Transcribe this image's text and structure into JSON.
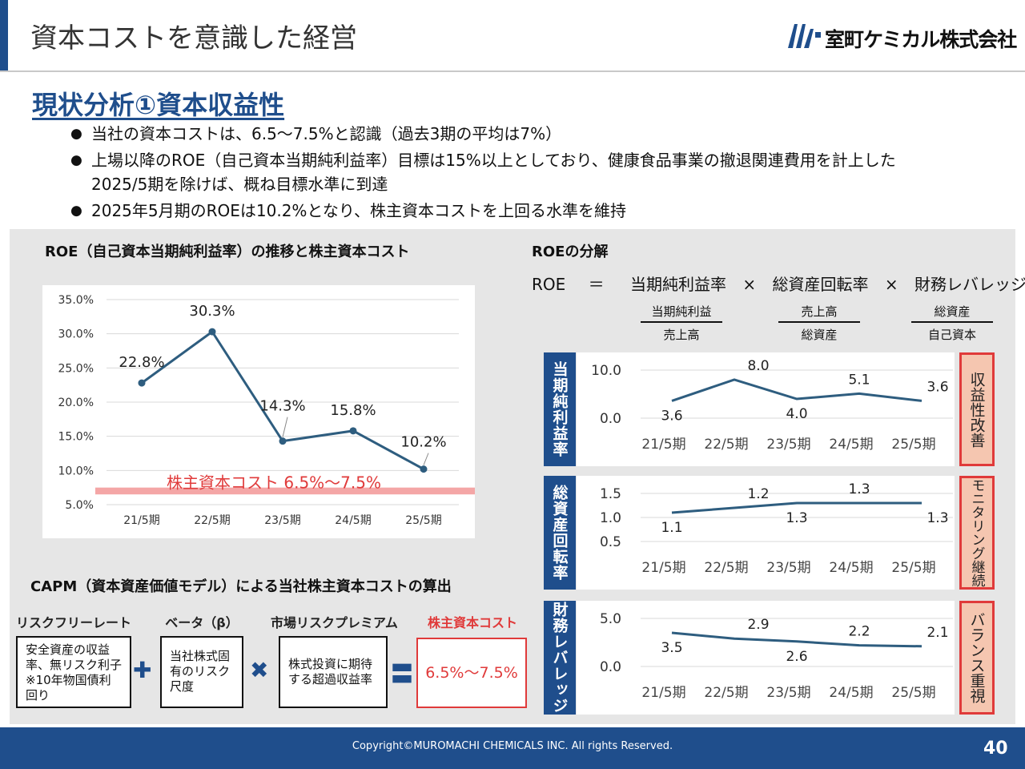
{
  "header": {
    "title": "資本コストを意識した経営",
    "company": "室町ケミカル株式会社"
  },
  "section": {
    "title": "現状分析①資本収益性",
    "bullets": [
      "当社の資本コストは、6.5～7.5%と認識（過去3期の平均は7%）",
      "上場以降のROE（自己資本当期純利益率）目標は15%以上としており、健康食品事業の撤退関連費用を計上した2025/5期を除けば、概ね目標水準に到達",
      "2025年5月期のROEは10.2%となり、株主資本コストを上回る水準を維持"
    ]
  },
  "roe_panel": {
    "heading": "ROE（自己資本当期純利益率）の推移と株主資本コスト",
    "cost_band_label": "株主資本コスト 6.5%～7.5%"
  },
  "chart_data": [
    {
      "type": "line",
      "categories": [
        "21/5期",
        "22/5期",
        "23/5期",
        "24/5期",
        "25/5期"
      ],
      "values": [
        22.8,
        30.3,
        14.3,
        15.8,
        10.2
      ],
      "data_labels": [
        "22.8%",
        "30.3%",
        "14.3%",
        "15.8%",
        "10.2%"
      ],
      "yticks": [
        "5.0%",
        "10.0%",
        "15.0%",
        "20.0%",
        "25.0%",
        "30.0%",
        "35.0%"
      ],
      "ylim": [
        5,
        35
      ],
      "band": [
        6.5,
        7.5
      ],
      "color": "#2e5d7f",
      "band_color": "#f4a6a6"
    },
    {
      "type": "line",
      "categories": [
        "21/5期",
        "22/5期",
        "23/5期",
        "24/5期",
        "25/5期"
      ],
      "values": [
        3.6,
        8.0,
        4.0,
        5.1,
        3.6
      ],
      "data_labels": [
        "3.6",
        "8.0",
        "4.0",
        "5.1",
        "3.6"
      ],
      "yticks": [
        "0.0",
        "10.0"
      ],
      "ylim": [
        0,
        10
      ]
    },
    {
      "type": "line",
      "categories": [
        "21/5期",
        "22/5期",
        "23/5期",
        "24/5期",
        "25/5期"
      ],
      "values": [
        1.1,
        1.2,
        1.3,
        1.3,
        1.3
      ],
      "data_labels": [
        "1.1",
        "1.2",
        "1.3",
        "1.3",
        "1.3"
      ],
      "yticks": [
        "0.5",
        "1.0",
        "1.5"
      ],
      "ylim": [
        0.5,
        1.5
      ]
    },
    {
      "type": "line",
      "categories": [
        "21/5期",
        "22/5期",
        "23/5期",
        "24/5期",
        "25/5期"
      ],
      "values": [
        3.5,
        2.9,
        2.6,
        2.2,
        2.1
      ],
      "data_labels": [
        "3.5",
        "2.9",
        "2.6",
        "2.2",
        "2.1"
      ],
      "yticks": [
        "0.0",
        "5.0"
      ],
      "ylim": [
        0,
        5
      ]
    }
  ],
  "decomp": {
    "heading": "ROEの分解",
    "formula": [
      "ROE",
      "＝",
      "当期純利益率",
      "×",
      "総資産回転率",
      "×",
      "財務レバレッジ"
    ],
    "fractions": [
      {
        "num": "当期純利益",
        "den": "売上高"
      },
      {
        "num": "売上高",
        "den": "総資産"
      },
      {
        "num": "総資産",
        "den": "自己資本"
      }
    ],
    "rows": [
      {
        "label": "当期純利益率",
        "tag": "収益性改善"
      },
      {
        "label": "総資産回転率",
        "tag": "モニタリング継続"
      },
      {
        "label": "財務レバレッジ",
        "tag": "バランス重視"
      }
    ]
  },
  "capm": {
    "heading": "CAPM（資本資産価値モデル）による当社株主資本コストの算出",
    "cols": [
      {
        "head": "リスクフリーレート",
        "body": "安全資産の収益率、無リスク利子※10年物国債利回り"
      },
      {
        "head": "ベータ（β）",
        "body": "当社株式固有のリスク尺度"
      },
      {
        "head": "市場リスクプレミアム",
        "body": "株式投資に期待する超過収益率"
      },
      {
        "head": "株主資本コスト",
        "body": "6.5%～7.5%"
      }
    ],
    "ops": [
      "✚",
      "✖",
      "〓"
    ],
    "accent": "#e03a3a"
  },
  "footer": {
    "copyright": "Copyright©MUROMACHI CHEMICALS INC. All rights Reserved.",
    "page": "40"
  }
}
